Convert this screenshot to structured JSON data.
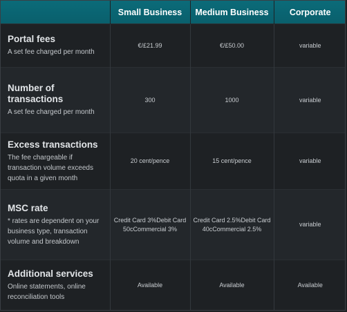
{
  "columns": [
    "",
    "Small Business",
    "Medium Business",
    "Corporate"
  ],
  "rows": [
    {
      "title": "Portal fees",
      "desc": "A set fee charged per month",
      "values": [
        "€/£21.99",
        "€/£50.00",
        "variable"
      ]
    },
    {
      "title": "Number of transactions",
      "desc": "A set fee charged per month",
      "values": [
        "300",
        "1000",
        "variable"
      ]
    },
    {
      "title": "Excess transactions",
      "desc": "The fee chargeable if transaction volume exceeds quota in a given month",
      "values": [
        "20 cent/pence",
        "15 cent/pence",
        "variable"
      ]
    },
    {
      "title": "MSC rate",
      "desc": "* rates are dependent on your business type, transaction volume and breakdown",
      "values": [
        "Credit Card 3%Debit Card 50cCommercial 3%",
        "Credit Card 2.5%Debit Card 40cCommercial 2.5%",
        "variable"
      ]
    },
    {
      "title": "Additional services",
      "desc": "Online statements, online reconciliation tools",
      "values": [
        "Available",
        "Available",
        "Available"
      ]
    }
  ]
}
